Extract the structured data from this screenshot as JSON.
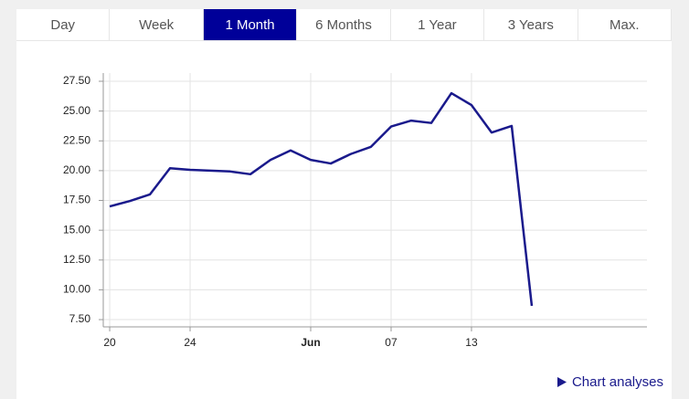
{
  "tabs": [
    {
      "label": "Day",
      "active": false
    },
    {
      "label": "Week",
      "active": false
    },
    {
      "label": "1 Month",
      "active": true
    },
    {
      "label": "6 Months",
      "active": false
    },
    {
      "label": "1 Year",
      "active": false
    },
    {
      "label": "3 Years",
      "active": false
    },
    {
      "label": "Max.",
      "active": false
    }
  ],
  "link": "Chart analyses",
  "chart_data": {
    "type": "line",
    "x": [
      0,
      1,
      2,
      3,
      4,
      5,
      6,
      7,
      8,
      9,
      10,
      11,
      12,
      13,
      14,
      15,
      16,
      17,
      18,
      19,
      20,
      21
    ],
    "series": [
      {
        "color": "#1a1a8c",
        "values": [
          17.0,
          17.45,
          18.0,
          20.2,
          20.07,
          20.0,
          19.93,
          19.7,
          20.9,
          21.7,
          20.9,
          20.6,
          21.4,
          22.0,
          23.7,
          24.2,
          24.0,
          26.5,
          25.5,
          23.2,
          23.75,
          8.65
        ]
      }
    ],
    "xlim": [
      -0.32,
      26.73
    ],
    "xticks": [
      {
        "value": 0,
        "label": "20"
      },
      {
        "value": 4,
        "label": "24"
      },
      {
        "value": 10,
        "label": "Jun",
        "bold": true
      },
      {
        "value": 14,
        "label": "07"
      },
      {
        "value": 18,
        "label": "13"
      }
    ],
    "ylim": [
      6.89,
      28.19
    ],
    "yticks": [
      {
        "value": 7.5,
        "label": "7.50"
      },
      {
        "value": 10,
        "label": "10.00"
      },
      {
        "value": 12.5,
        "label": "12.50"
      },
      {
        "value": 15,
        "label": "15.00"
      },
      {
        "value": 17.5,
        "label": "17.50"
      },
      {
        "value": 20,
        "label": "20.00"
      },
      {
        "value": 22.5,
        "label": "22.50"
      },
      {
        "value": 25,
        "label": "25.00"
      },
      {
        "value": 27.5,
        "label": "27.50"
      }
    ],
    "grid": true
  }
}
